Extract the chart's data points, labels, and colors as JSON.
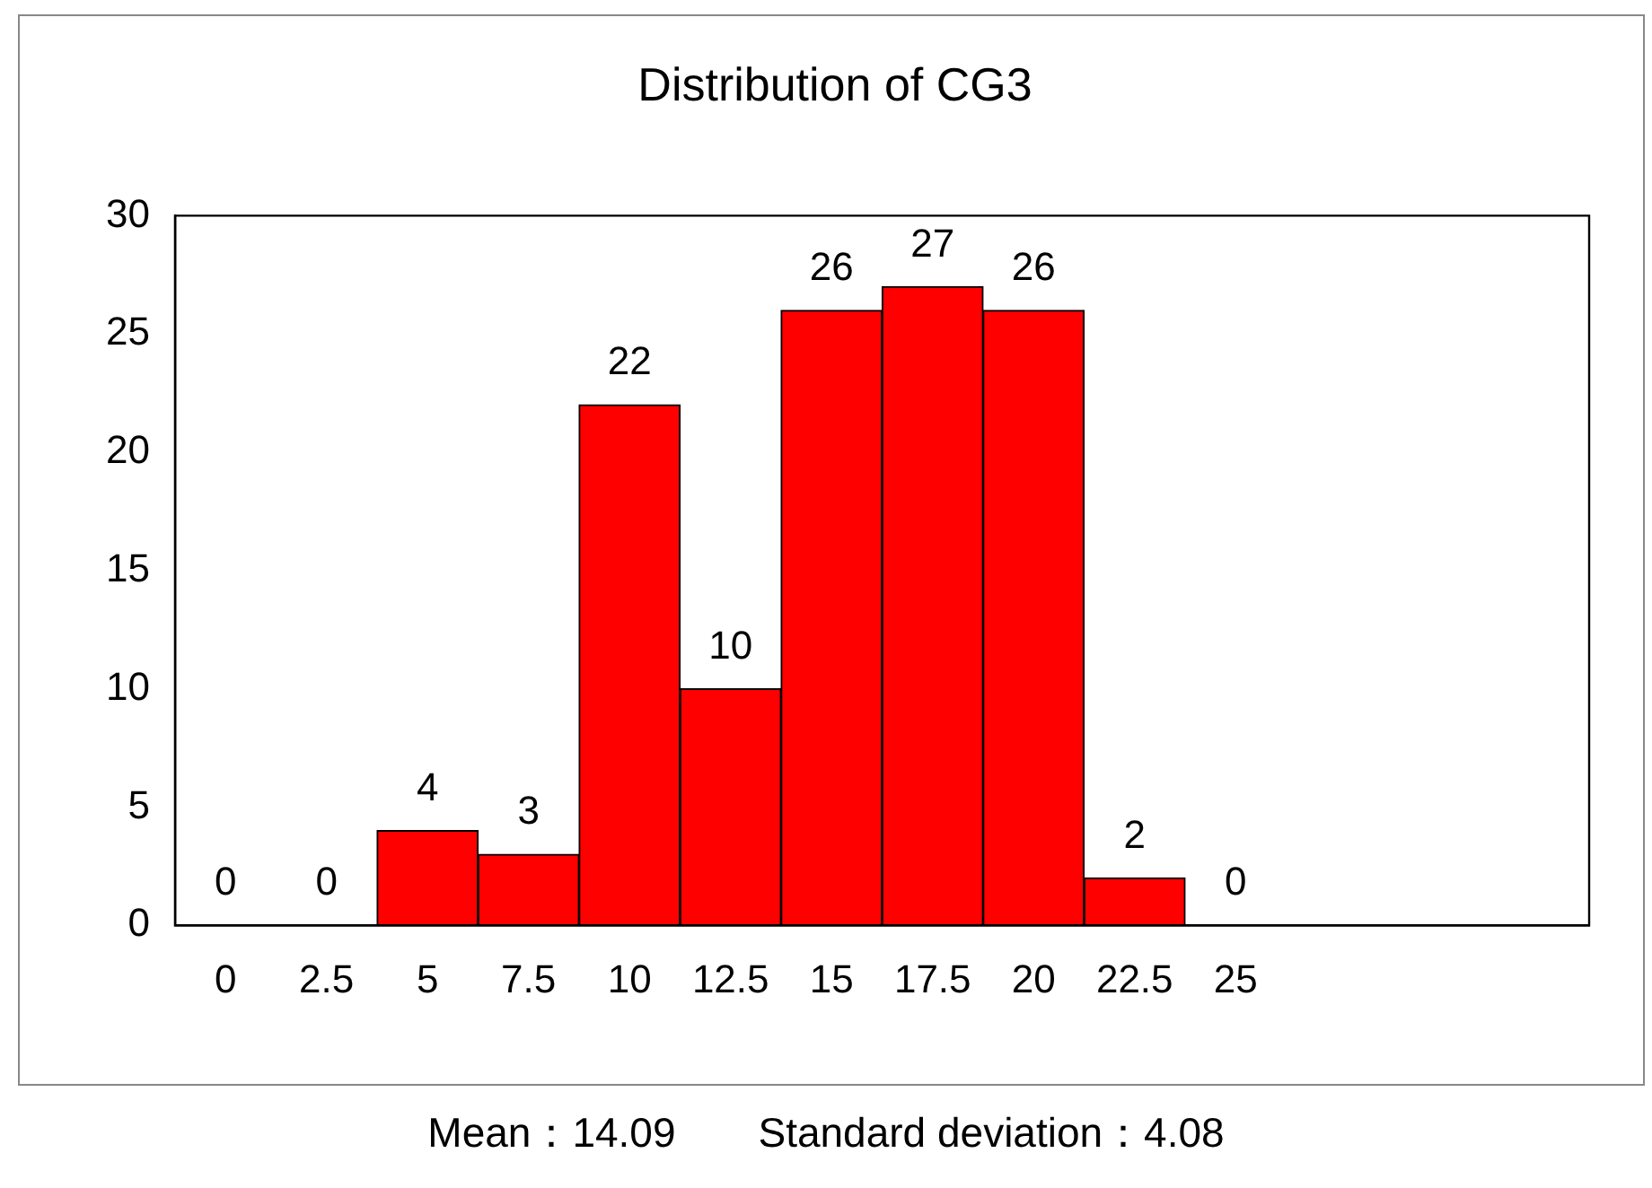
{
  "chart_data": {
    "type": "bar",
    "title": "Distribution of CG3",
    "categories": [
      "0",
      "2.5",
      "5",
      "7.5",
      "10",
      "12.5",
      "15",
      "17.5",
      "20",
      "22.5",
      "25",
      null,
      null,
      null
    ],
    "values": [
      0,
      0,
      4,
      3,
      22,
      10,
      26,
      27,
      26,
      2,
      0,
      null,
      null,
      null
    ],
    "color": "#ff0000",
    "ylim": [
      0,
      30
    ],
    "yticks": [
      0,
      5,
      10,
      15,
      20,
      25,
      30
    ],
    "grid": false,
    "legend": false,
    "data_labels": true,
    "annotations": [
      "Mean：14.09　　Standard deviation：4.08"
    ]
  }
}
